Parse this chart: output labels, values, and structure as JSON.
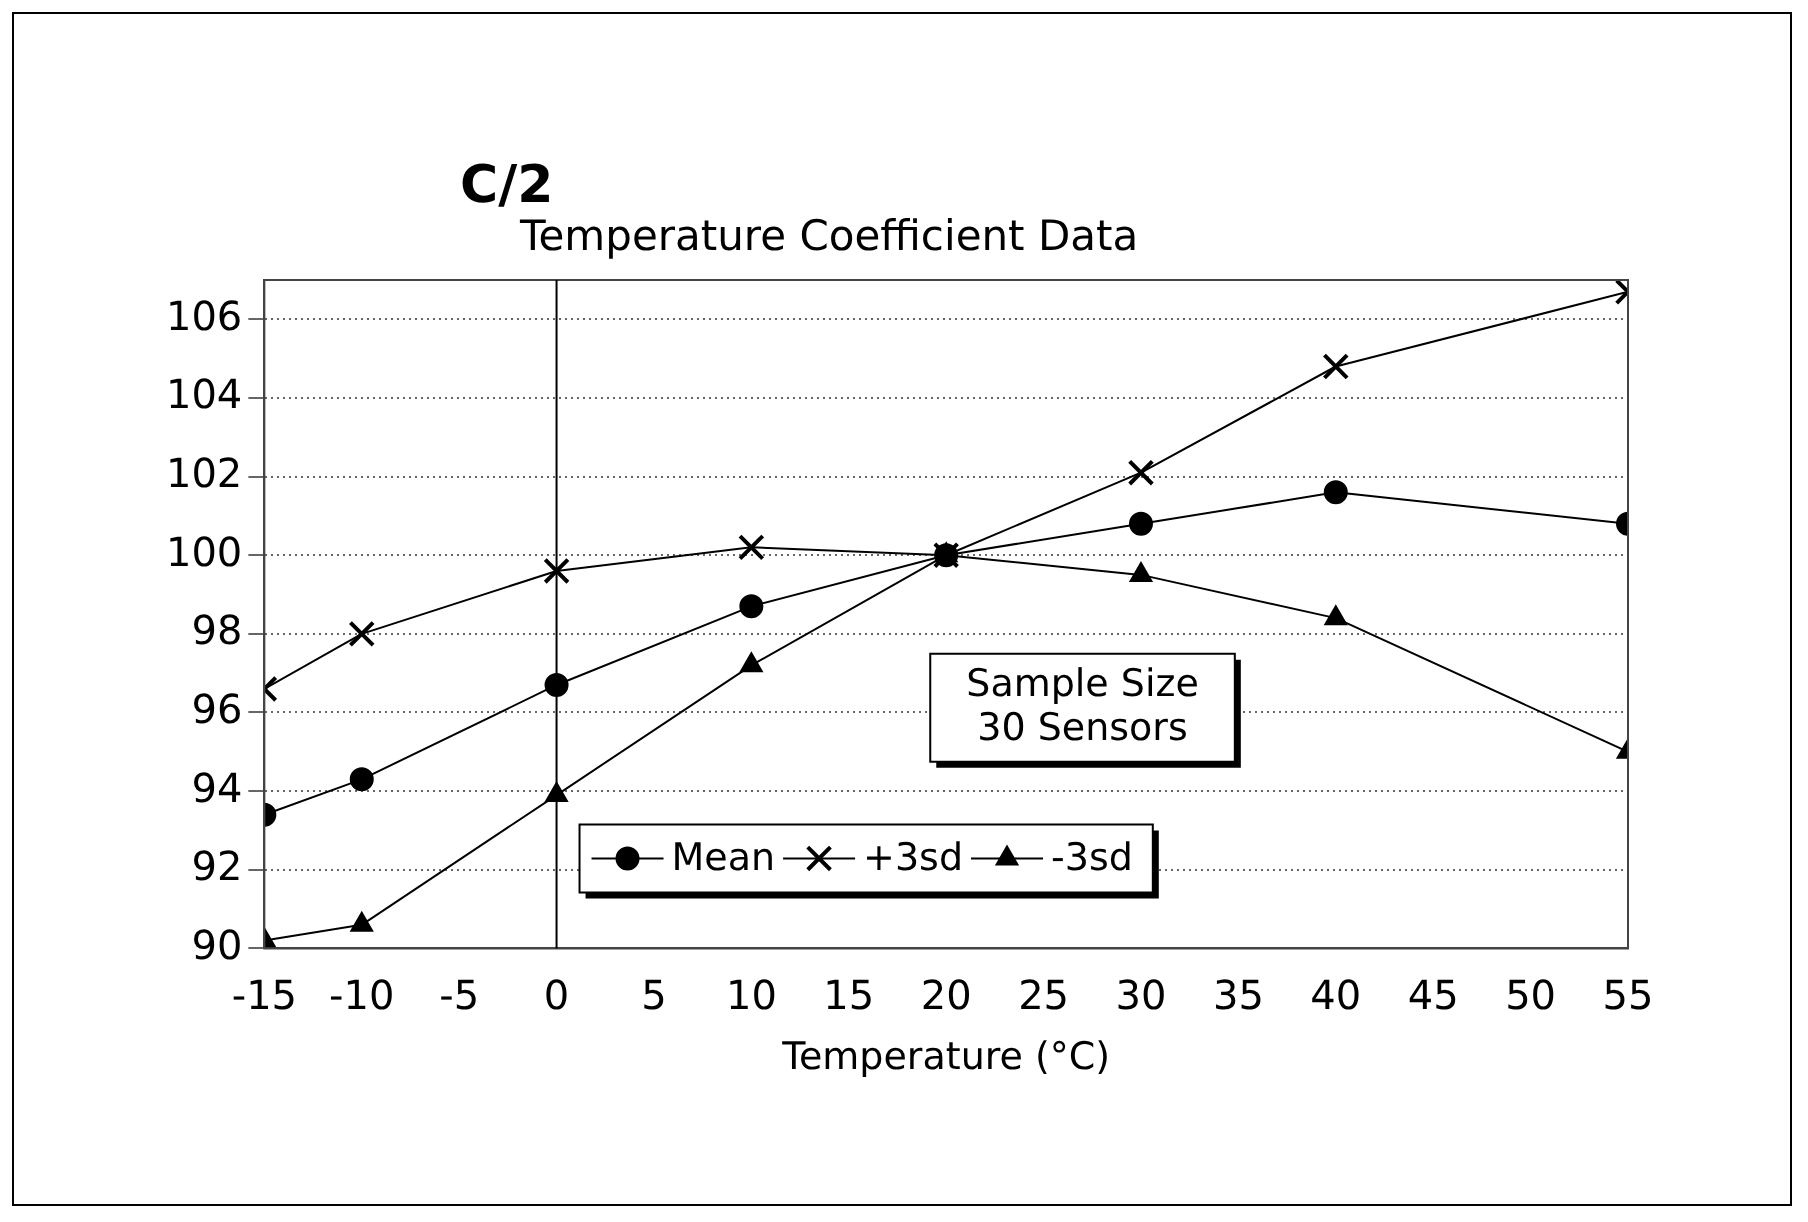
{
  "chart_data": {
    "type": "line",
    "title": "C/2",
    "subtitle": "Temperature Coefficient Data",
    "xlabel": "Temperature (°C)",
    "x": [
      -15,
      -10,
      0,
      10,
      20,
      30,
      40,
      55
    ],
    "xlim": [
      -15,
      55
    ],
    "xticks": [
      -15,
      -10,
      -5,
      0,
      5,
      10,
      15,
      20,
      25,
      30,
      35,
      40,
      45,
      50,
      55
    ],
    "ylim": [
      90,
      107
    ],
    "yticks": [
      90,
      92,
      94,
      96,
      98,
      100,
      102,
      104,
      106
    ],
    "series": [
      {
        "name": "Mean",
        "color": "#000000",
        "marker": "circle",
        "values": [
          93.4,
          94.3,
          96.7,
          98.7,
          100.0,
          100.8,
          101.6,
          100.8
        ]
      },
      {
        "name": "+3sd",
        "color": "#000000",
        "marker": "cross",
        "values": [
          96.6,
          98.0,
          99.6,
          100.2,
          100.0,
          102.1,
          104.8,
          106.7
        ]
      },
      {
        "name": "-3sd",
        "color": "#000000",
        "marker": "triangle",
        "values": [
          90.2,
          90.6,
          93.9,
          97.2,
          100.0,
          99.5,
          98.4,
          95.0
        ]
      }
    ],
    "ref_lines": [
      {
        "axis": "x",
        "value": 0,
        "color": "#000000"
      }
    ],
    "annotations": [
      "Sample Size\n30 Sensors"
    ],
    "grid": "y",
    "legend": "bottom",
    "line_style": "solid"
  }
}
